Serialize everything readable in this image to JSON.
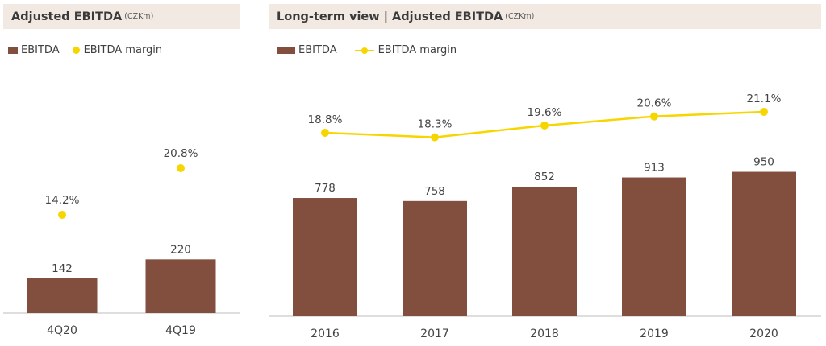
{
  "left_panel": {
    "title": "Adjusted EBITDA",
    "unit": "(CZKm)",
    "legend": {
      "bar_label": "EBITDA",
      "dot_label": "EBITDA margin"
    }
  },
  "right_panel": {
    "title": "Long-term view | Adjusted EBITDA",
    "unit": "(CZKm)",
    "legend": {
      "bar_label": "EBITDA",
      "line_label": "EBITDA margin"
    }
  },
  "colors": {
    "bar": "#824e3e",
    "margin": "#f7d600",
    "header_bg": "#f2e9e3"
  },
  "chart_data": [
    {
      "type": "bar",
      "title": "Adjusted EBITDA (CZKm)",
      "categories": [
        "4Q20",
        "4Q19"
      ],
      "series": [
        {
          "name": "EBITDA",
          "type": "bar",
          "values": [
            142,
            220
          ],
          "labels": [
            "142",
            "220"
          ]
        },
        {
          "name": "EBITDA margin",
          "type": "scatter",
          "values": [
            14.2,
            20.8
          ],
          "labels": [
            "14.2%",
            "20.8%"
          ]
        }
      ],
      "legend": "top-left",
      "grid": false
    },
    {
      "type": "bar",
      "title": "Long-term view | Adjusted EBITDA (CZKm)",
      "categories": [
        "2016",
        "2017",
        "2018",
        "2019",
        "2020"
      ],
      "series": [
        {
          "name": "EBITDA",
          "type": "bar",
          "values": [
            778,
            758,
            852,
            913,
            950
          ],
          "labels": [
            "778",
            "758",
            "852",
            "913",
            "950"
          ]
        },
        {
          "name": "EBITDA margin",
          "type": "line",
          "values": [
            18.8,
            18.3,
            19.6,
            20.6,
            21.1
          ],
          "labels": [
            "18.8%",
            "18.3%",
            "19.6%",
            "20.6%",
            "21.1%"
          ]
        }
      ],
      "legend": "top-left",
      "grid": false
    }
  ]
}
